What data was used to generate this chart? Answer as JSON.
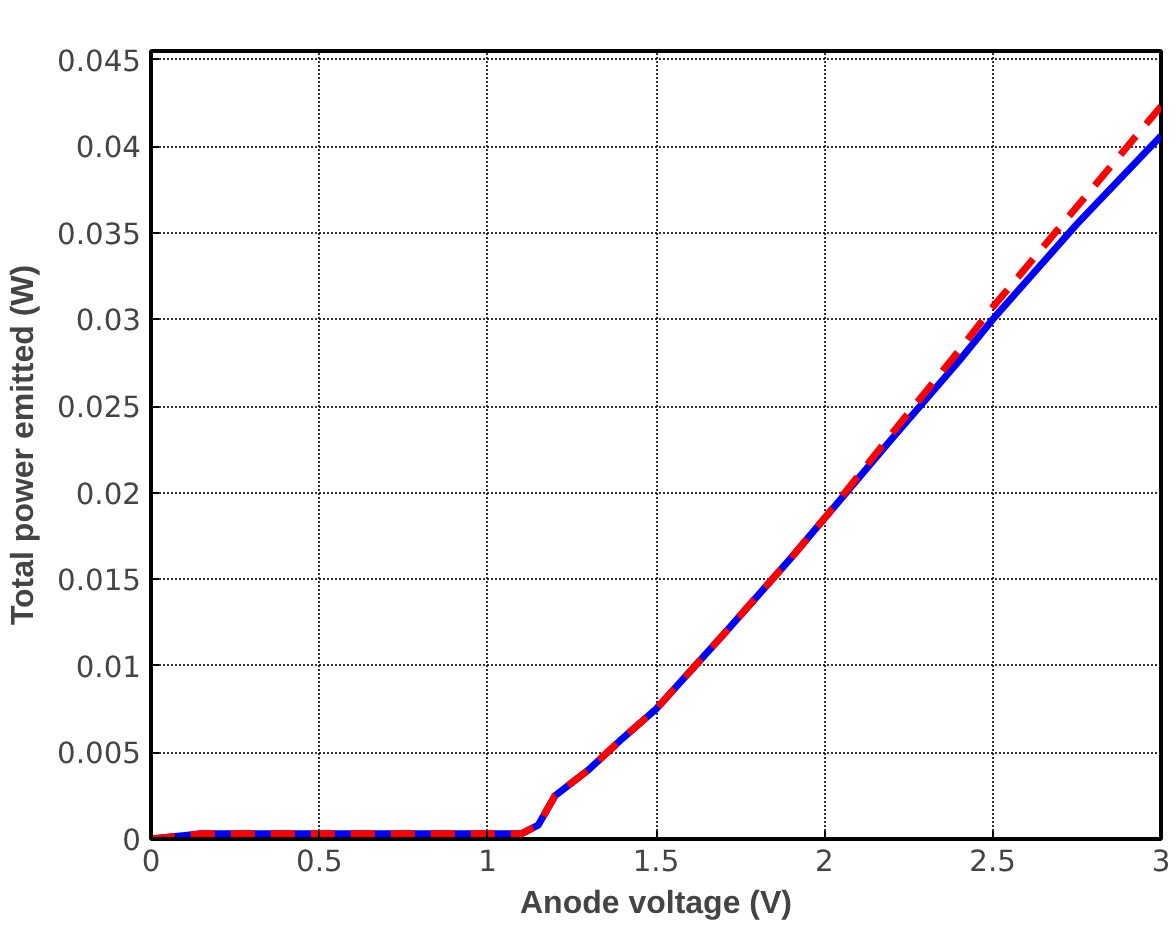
{
  "chart_data": {
    "type": "line",
    "xlabel": "Anode voltage (V)",
    "ylabel": "Total power emitted (W)",
    "xlim": [
      0,
      3
    ],
    "ylim": [
      0,
      0.0455
    ],
    "xticks": [
      0,
      0.5,
      1,
      1.5,
      2,
      2.5,
      3
    ],
    "yticks": [
      0,
      0.005,
      0.01,
      0.015,
      0.02,
      0.025,
      0.03,
      0.035,
      0.04,
      0.045
    ],
    "grid": true,
    "series": [
      {
        "color": "#0000ff",
        "line_style": "solid",
        "x": [
          0,
          0.15,
          1.1,
          1.15,
          1.2,
          1.3,
          1.4,
          1.5,
          1.7,
          1.9,
          2.0,
          2.2,
          2.4,
          2.5,
          2.75,
          3.0
        ],
        "values": [
          0,
          0.0003,
          0.0003,
          0.0008,
          0.0025,
          0.004,
          0.0058,
          0.0075,
          0.0118,
          0.0162,
          0.0185,
          0.0231,
          0.0276,
          0.03,
          0.0355,
          0.0406
        ]
      },
      {
        "color": "#ff0000",
        "line_style": "dashed",
        "x": [
          0,
          0.15,
          1.1,
          1.15,
          1.2,
          1.3,
          1.4,
          1.5,
          1.7,
          1.9,
          2.0,
          2.2,
          2.4,
          2.5,
          2.75,
          3.0
        ],
        "values": [
          0,
          0.0003,
          0.0003,
          0.0008,
          0.0025,
          0.004,
          0.0058,
          0.0075,
          0.0118,
          0.0162,
          0.0185,
          0.0234,
          0.0282,
          0.0307,
          0.0365,
          0.0423
        ]
      }
    ]
  }
}
